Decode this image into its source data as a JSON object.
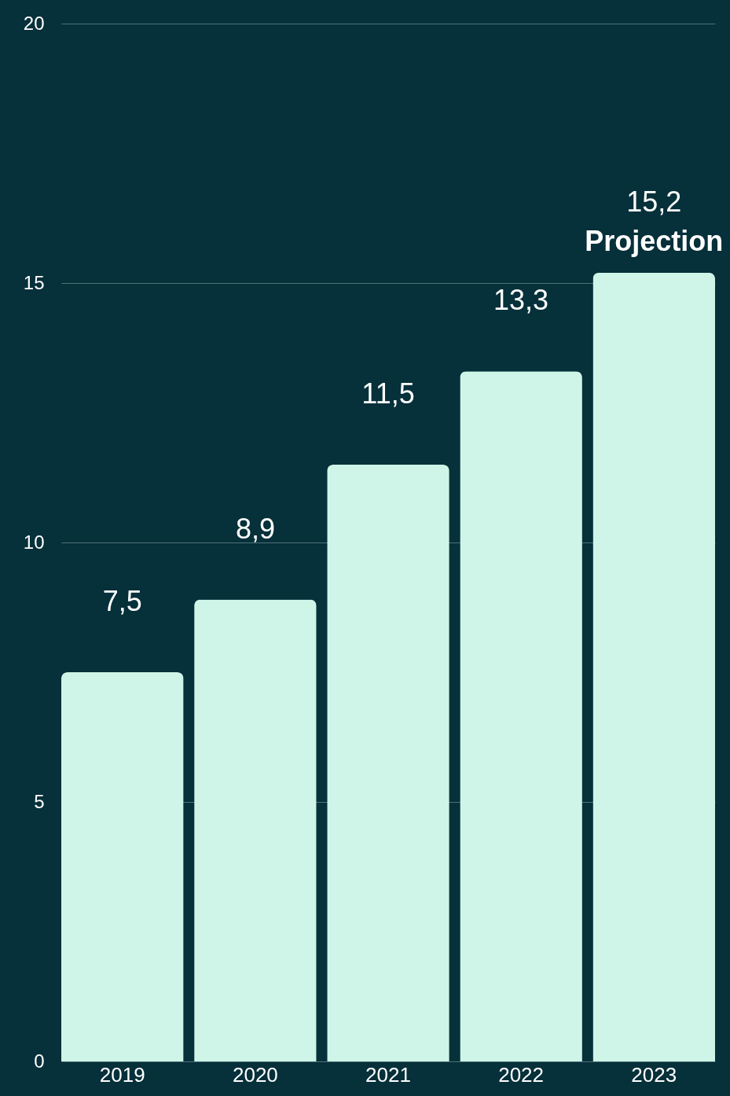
{
  "chart_data": {
    "type": "bar",
    "categories": [
      "2019",
      "2020",
      "2021",
      "2022",
      "2023"
    ],
    "values": [
      7.5,
      8.9,
      11.5,
      13.3,
      15.2
    ],
    "value_labels": [
      "7,5",
      "8,9",
      "11,5",
      "13,3",
      "15,2"
    ],
    "color": "#cef5e7",
    "ylim": [
      0,
      20
    ],
    "yticks": [
      0,
      5,
      10,
      15,
      20
    ],
    "grid": "y",
    "annotations": [
      {
        "text": "Projection",
        "x": "2023",
        "y": 15.2
      }
    ]
  }
}
